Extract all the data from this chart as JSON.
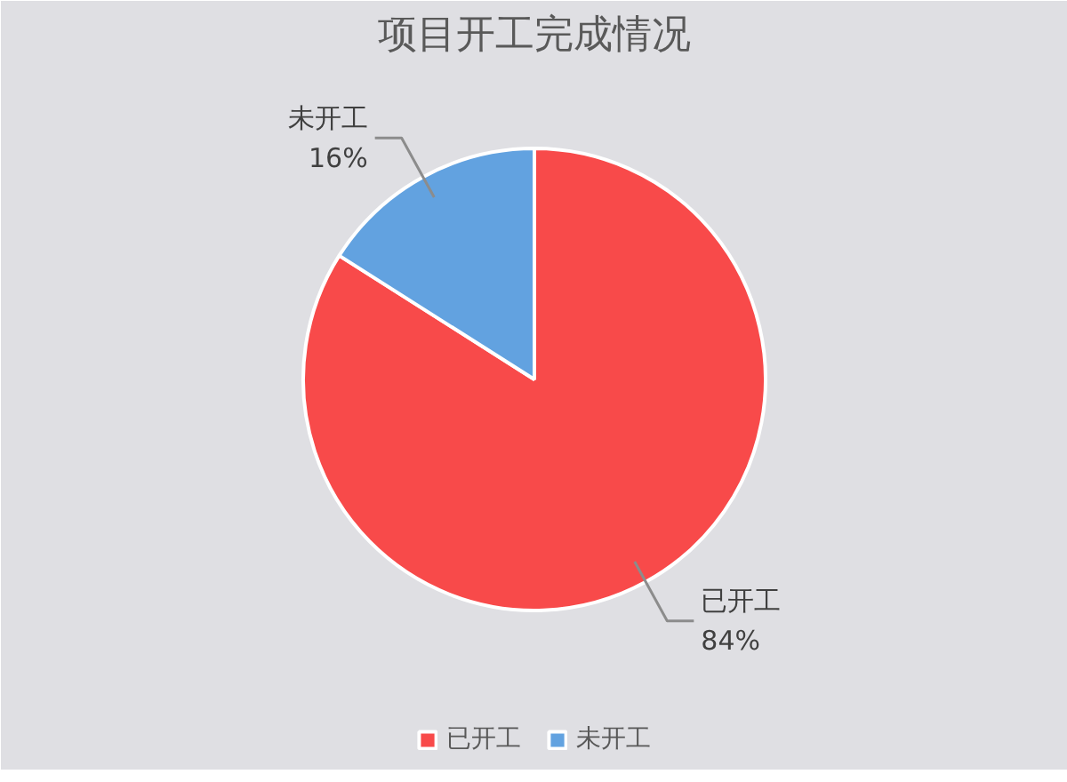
{
  "chart_data": {
    "type": "pie",
    "title": "项目开工完成情况",
    "categories": [
      "已开工",
      "未开工"
    ],
    "values": [
      84,
      16
    ],
    "colors": [
      "#f84a4a",
      "#62a2e0"
    ],
    "value_labels": [
      "84%",
      "16%"
    ],
    "legend": "bottom"
  }
}
